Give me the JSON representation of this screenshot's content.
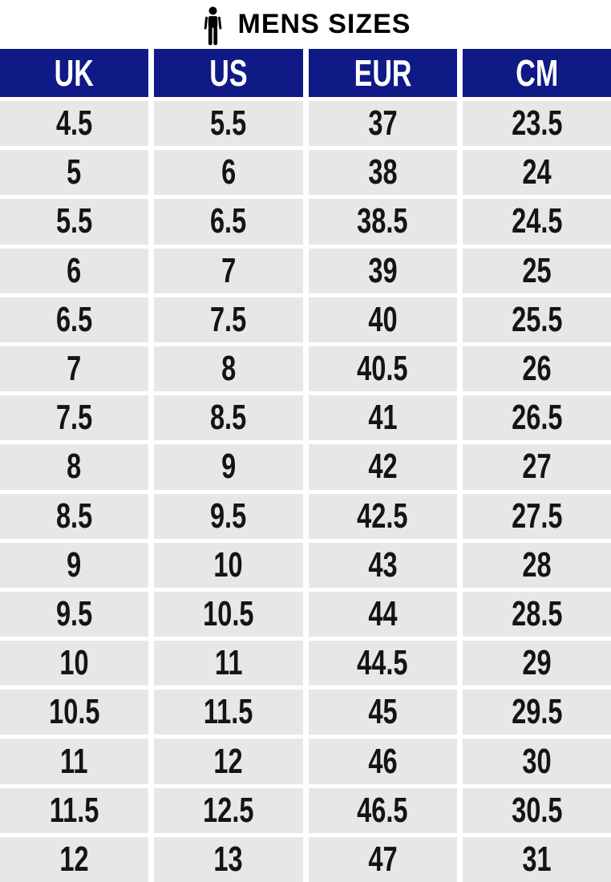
{
  "header": {
    "title": "MENS SIZES",
    "icon": "person-icon"
  },
  "chart_data": {
    "type": "table",
    "title": "MENS SIZES",
    "columns": [
      "UK",
      "US",
      "EUR",
      "CM"
    ],
    "rows": [
      [
        "4.5",
        "5.5",
        "37",
        "23.5"
      ],
      [
        "5",
        "6",
        "38",
        "24"
      ],
      [
        "5.5",
        "6.5",
        "38.5",
        "24.5"
      ],
      [
        "6",
        "7",
        "39",
        "25"
      ],
      [
        "6.5",
        "7.5",
        "40",
        "25.5"
      ],
      [
        "7",
        "8",
        "40.5",
        "26"
      ],
      [
        "7.5",
        "8.5",
        "41",
        "26.5"
      ],
      [
        "8",
        "9",
        "42",
        "27"
      ],
      [
        "8.5",
        "9.5",
        "42.5",
        "27.5"
      ],
      [
        "9",
        "10",
        "43",
        "28"
      ],
      [
        "9.5",
        "10.5",
        "44",
        "28.5"
      ],
      [
        "10",
        "11",
        "44.5",
        "29"
      ],
      [
        "10.5",
        "11.5",
        "45",
        "29.5"
      ],
      [
        "11",
        "12",
        "46",
        "30"
      ],
      [
        "11.5",
        "12.5",
        "46.5",
        "30.5"
      ],
      [
        "12",
        "13",
        "47",
        "31"
      ]
    ]
  },
  "colors": {
    "header_bg": "#0f1a86",
    "header_text": "#ffffff",
    "cell_bg": "#e8e7e8",
    "cell_text": "#141414",
    "gutter": "#ffffff",
    "title_text": "#000000",
    "icon_fill": "#000000"
  }
}
